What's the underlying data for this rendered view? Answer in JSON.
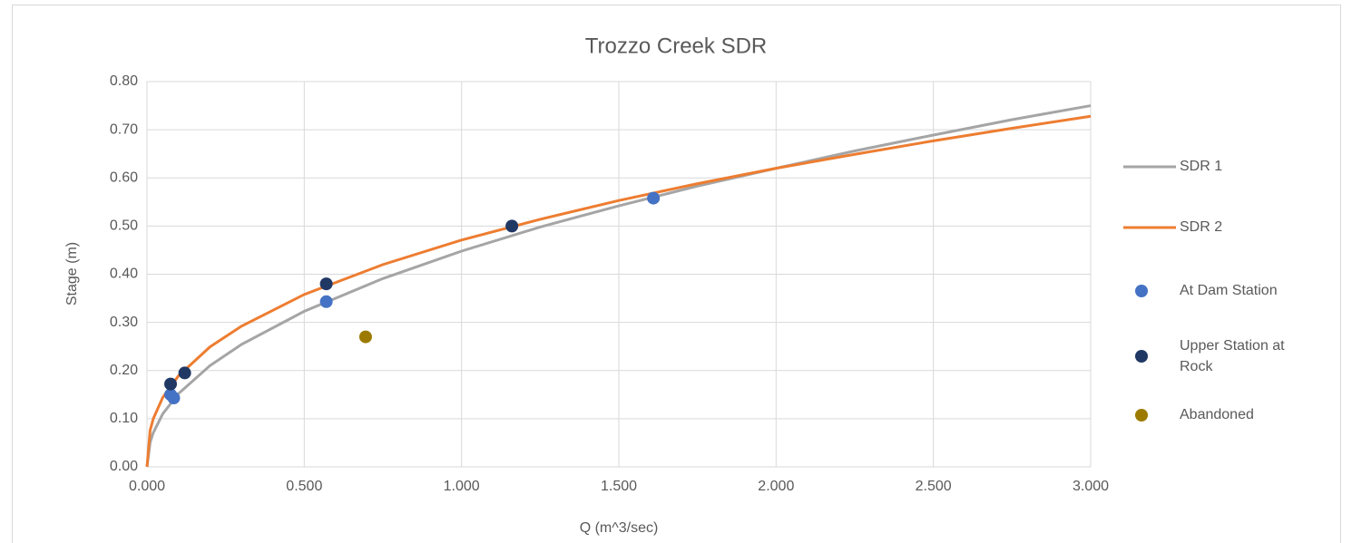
{
  "chart_data": {
    "type": "scatter",
    "title": "Trozzo Creek SDR",
    "x_label": "Q (m^3/sec)",
    "y_label": "Stage (m)",
    "xlim": [
      0,
      3
    ],
    "ylim": [
      0,
      0.8
    ],
    "xticks": [
      {
        "value": 0,
        "label": "0.000"
      },
      {
        "value": 0.5,
        "label": "0.500"
      },
      {
        "value": 1,
        "label": "1.000"
      },
      {
        "value": 1.5,
        "label": "1.500"
      },
      {
        "value": 2,
        "label": "2.000"
      },
      {
        "value": 2.5,
        "label": "2.500"
      },
      {
        "value": 3,
        "label": "3.000"
      }
    ],
    "yticks": [
      {
        "value": 0,
        "label": "0.00"
      },
      {
        "value": 0.1,
        "label": "0.10"
      },
      {
        "value": 0.2,
        "label": "0.20"
      },
      {
        "value": 0.3,
        "label": "0.30"
      },
      {
        "value": 0.4,
        "label": "0.40"
      },
      {
        "value": 0.5,
        "label": "0.50"
      },
      {
        "value": 0.6,
        "label": "0.60"
      },
      {
        "value": 0.7,
        "label": "0.70"
      },
      {
        "value": 0.8,
        "label": "0.80"
      }
    ],
    "grid": true,
    "legend": "right",
    "series": [
      {
        "name": "SDR 1",
        "color": "#a5a5a5",
        "mode": "line",
        "x": [
          0,
          0.01,
          0.02,
          0.05,
          0.1,
          0.2,
          0.3,
          0.5,
          0.75,
          1,
          1.25,
          1.5,
          1.75,
          2,
          2.25,
          2.5,
          2.75,
          3
        ],
        "values": [
          0,
          0.051,
          0.071,
          0.11,
          0.152,
          0.21,
          0.254,
          0.323,
          0.391,
          0.448,
          0.498,
          0.542,
          0.583,
          0.62,
          0.656,
          0.689,
          0.721,
          0.75
        ]
      },
      {
        "name": "SDR 2",
        "color": "#ed7d31",
        "mode": "line",
        "x": [
          0,
          0.01,
          0.02,
          0.05,
          0.1,
          0.2,
          0.3,
          0.5,
          0.75,
          1,
          1.25,
          1.5,
          1.75,
          2,
          2.25,
          2.5,
          2.75,
          3
        ],
        "values": [
          0,
          0.076,
          0.1,
          0.144,
          0.189,
          0.249,
          0.292,
          0.358,
          0.42,
          0.471,
          0.514,
          0.553,
          0.588,
          0.62,
          0.649,
          0.677,
          0.703,
          0.728
        ]
      },
      {
        "name": "At Dam Station",
        "color": "#4472c4",
        "mode": "marker",
        "x": [
          0.075,
          0.085,
          0.57,
          1.61
        ],
        "values": [
          0.15,
          0.143,
          0.343,
          0.558
        ]
      },
      {
        "name": "Upper Station at Rock",
        "color": "#203864",
        "mode": "marker",
        "x": [
          0.075,
          0.12,
          0.57,
          1.16
        ],
        "values": [
          0.172,
          0.195,
          0.38,
          0.5
        ]
      },
      {
        "name": "Abandoned",
        "color": "#9c7a00",
        "mode": "marker",
        "x": [
          0.695
        ],
        "values": [
          0.27
        ]
      }
    ]
  }
}
